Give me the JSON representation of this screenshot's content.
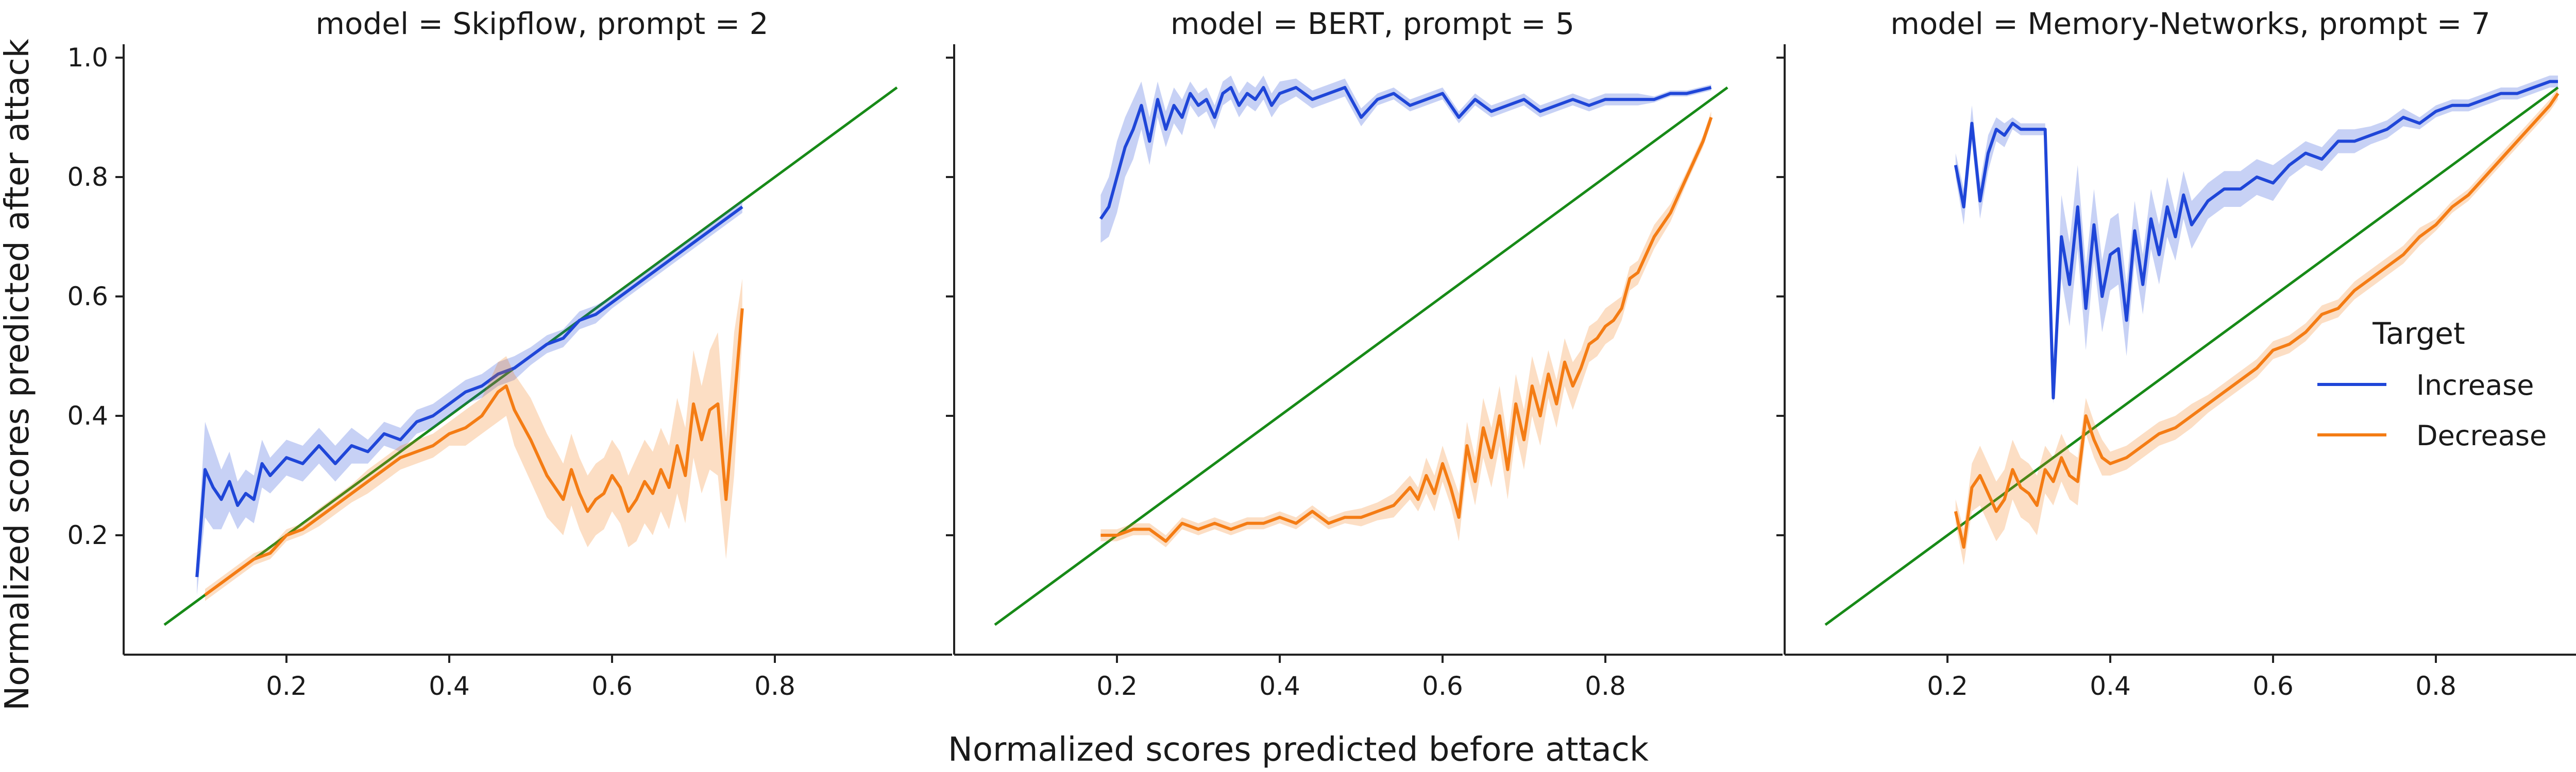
{
  "xlabel": "Normalized scores predicted before attack",
  "ylabel": "Normalized scores predicted after attack",
  "legend": {
    "title": "Target",
    "entries": [
      {
        "label": "Increase",
        "color": "#1f46d8"
      },
      {
        "label": "Decrease",
        "color": "#f47c14"
      }
    ]
  },
  "colors": {
    "increase": "#1f46d8",
    "decrease": "#f47c14",
    "diagonal": "#178a17",
    "axis": "#222222"
  },
  "chart_data": [
    {
      "type": "line",
      "title": "model = Skipflow, prompt = 2",
      "xlim": [
        0.0,
        1.0
      ],
      "ylim": [
        0.0,
        1.0
      ],
      "xticks": [
        "0.2",
        "0.4",
        "0.6",
        "0.8"
      ],
      "yticks": [
        "0.2",
        "0.4",
        "0.6",
        "0.8",
        "1.0"
      ],
      "diagonal": [
        [
          0.05,
          0.05
        ],
        [
          0.95,
          0.95
        ]
      ],
      "series": [
        {
          "name": "Increase",
          "x": [
            0.09,
            0.1,
            0.11,
            0.12,
            0.13,
            0.14,
            0.15,
            0.16,
            0.17,
            0.18,
            0.2,
            0.22,
            0.24,
            0.26,
            0.28,
            0.3,
            0.32,
            0.34,
            0.36,
            0.38,
            0.4,
            0.42,
            0.44,
            0.46,
            0.48,
            0.5,
            0.52,
            0.54,
            0.56,
            0.58,
            0.6,
            0.62,
            0.64,
            0.66,
            0.68,
            0.7,
            0.72,
            0.74,
            0.76
          ],
          "y": [
            0.13,
            0.31,
            0.28,
            0.26,
            0.29,
            0.25,
            0.27,
            0.26,
            0.32,
            0.3,
            0.33,
            0.32,
            0.35,
            0.32,
            0.35,
            0.34,
            0.37,
            0.36,
            0.39,
            0.4,
            0.42,
            0.44,
            0.45,
            0.47,
            0.48,
            0.5,
            0.52,
            0.53,
            0.56,
            0.57,
            0.59,
            0.61,
            0.63,
            0.65,
            0.67,
            0.69,
            0.71,
            0.73,
            0.75
          ],
          "band": [
            0.03,
            0.08,
            0.07,
            0.05,
            0.05,
            0.04,
            0.04,
            0.04,
            0.04,
            0.03,
            0.03,
            0.03,
            0.03,
            0.03,
            0.03,
            0.02,
            0.02,
            0.02,
            0.02,
            0.02,
            0.02,
            0.02,
            0.02,
            0.02,
            0.02,
            0.015,
            0.015,
            0.015,
            0.015,
            0.015,
            0.01,
            0.01,
            0.01,
            0.01,
            0.01,
            0.01,
            0.01,
            0.01,
            0.01
          ]
        },
        {
          "name": "Decrease",
          "x": [
            0.1,
            0.12,
            0.14,
            0.16,
            0.18,
            0.2,
            0.22,
            0.24,
            0.26,
            0.28,
            0.3,
            0.32,
            0.34,
            0.36,
            0.38,
            0.4,
            0.42,
            0.44,
            0.46,
            0.47,
            0.48,
            0.5,
            0.52,
            0.54,
            0.55,
            0.56,
            0.57,
            0.58,
            0.59,
            0.6,
            0.61,
            0.62,
            0.63,
            0.64,
            0.65,
            0.66,
            0.67,
            0.68,
            0.69,
            0.7,
            0.71,
            0.72,
            0.73,
            0.74,
            0.75,
            0.76
          ],
          "y": [
            0.1,
            0.12,
            0.14,
            0.16,
            0.17,
            0.2,
            0.21,
            0.23,
            0.25,
            0.27,
            0.29,
            0.31,
            0.33,
            0.34,
            0.35,
            0.37,
            0.38,
            0.4,
            0.44,
            0.45,
            0.41,
            0.36,
            0.3,
            0.26,
            0.31,
            0.27,
            0.24,
            0.26,
            0.27,
            0.3,
            0.28,
            0.24,
            0.26,
            0.29,
            0.27,
            0.31,
            0.28,
            0.35,
            0.3,
            0.42,
            0.36,
            0.41,
            0.42,
            0.26,
            0.42,
            0.58
          ],
          "band": [
            0.01,
            0.01,
            0.01,
            0.01,
            0.01,
            0.01,
            0.01,
            0.015,
            0.015,
            0.015,
            0.02,
            0.02,
            0.02,
            0.02,
            0.02,
            0.02,
            0.03,
            0.03,
            0.05,
            0.05,
            0.06,
            0.07,
            0.07,
            0.06,
            0.06,
            0.06,
            0.06,
            0.06,
            0.06,
            0.06,
            0.06,
            0.06,
            0.07,
            0.07,
            0.07,
            0.07,
            0.07,
            0.08,
            0.08,
            0.09,
            0.09,
            0.1,
            0.12,
            0.1,
            0.12,
            0.05
          ]
        }
      ]
    },
    {
      "type": "line",
      "title": "model = BERT, prompt = 5",
      "xlim": [
        0.0,
        1.0
      ],
      "ylim": [
        0.0,
        1.0
      ],
      "xticks": [
        "0.2",
        "0.4",
        "0.6",
        "0.8"
      ],
      "yticks": [
        "0.2",
        "0.4",
        "0.6",
        "0.8",
        "1.0"
      ],
      "diagonal": [
        [
          0.05,
          0.05
        ],
        [
          0.95,
          0.95
        ]
      ],
      "series": [
        {
          "name": "Increase",
          "x": [
            0.18,
            0.19,
            0.2,
            0.21,
            0.22,
            0.23,
            0.24,
            0.25,
            0.26,
            0.27,
            0.28,
            0.29,
            0.3,
            0.31,
            0.32,
            0.33,
            0.34,
            0.35,
            0.36,
            0.37,
            0.38,
            0.39,
            0.4,
            0.42,
            0.44,
            0.46,
            0.48,
            0.5,
            0.52,
            0.54,
            0.56,
            0.58,
            0.6,
            0.62,
            0.64,
            0.66,
            0.68,
            0.7,
            0.72,
            0.74,
            0.76,
            0.78,
            0.8,
            0.82,
            0.84,
            0.86,
            0.88,
            0.9,
            0.93
          ],
          "y": [
            0.73,
            0.75,
            0.8,
            0.85,
            0.88,
            0.92,
            0.86,
            0.93,
            0.88,
            0.92,
            0.9,
            0.94,
            0.92,
            0.93,
            0.9,
            0.94,
            0.95,
            0.92,
            0.94,
            0.93,
            0.95,
            0.92,
            0.94,
            0.95,
            0.93,
            0.94,
            0.95,
            0.9,
            0.93,
            0.94,
            0.92,
            0.93,
            0.94,
            0.9,
            0.93,
            0.91,
            0.92,
            0.93,
            0.91,
            0.92,
            0.93,
            0.92,
            0.93,
            0.93,
            0.93,
            0.93,
            0.94,
            0.94,
            0.95
          ],
          "band": [
            0.04,
            0.05,
            0.06,
            0.05,
            0.05,
            0.04,
            0.04,
            0.03,
            0.03,
            0.03,
            0.03,
            0.02,
            0.02,
            0.02,
            0.02,
            0.02,
            0.02,
            0.02,
            0.02,
            0.02,
            0.02,
            0.02,
            0.02,
            0.015,
            0.015,
            0.015,
            0.015,
            0.015,
            0.01,
            0.01,
            0.01,
            0.01,
            0.01,
            0.01,
            0.01,
            0.01,
            0.01,
            0.01,
            0.01,
            0.01,
            0.01,
            0.01,
            0.01,
            0.01,
            0.01,
            0.005,
            0.005,
            0.005,
            0.005
          ]
        },
        {
          "name": "Decrease",
          "x": [
            0.18,
            0.2,
            0.22,
            0.24,
            0.26,
            0.28,
            0.3,
            0.32,
            0.34,
            0.36,
            0.38,
            0.4,
            0.42,
            0.44,
            0.46,
            0.48,
            0.5,
            0.52,
            0.54,
            0.56,
            0.57,
            0.58,
            0.59,
            0.6,
            0.61,
            0.62,
            0.63,
            0.64,
            0.65,
            0.66,
            0.67,
            0.68,
            0.69,
            0.7,
            0.71,
            0.72,
            0.73,
            0.74,
            0.75,
            0.76,
            0.77,
            0.78,
            0.79,
            0.8,
            0.81,
            0.82,
            0.83,
            0.84,
            0.85,
            0.86,
            0.88,
            0.9,
            0.92,
            0.93
          ],
          "y": [
            0.2,
            0.2,
            0.21,
            0.21,
            0.19,
            0.22,
            0.21,
            0.22,
            0.21,
            0.22,
            0.22,
            0.23,
            0.22,
            0.24,
            0.22,
            0.23,
            0.23,
            0.24,
            0.25,
            0.28,
            0.26,
            0.3,
            0.27,
            0.32,
            0.28,
            0.23,
            0.35,
            0.29,
            0.38,
            0.33,
            0.4,
            0.31,
            0.42,
            0.36,
            0.45,
            0.4,
            0.47,
            0.42,
            0.49,
            0.45,
            0.48,
            0.52,
            0.53,
            0.55,
            0.56,
            0.58,
            0.63,
            0.64,
            0.67,
            0.7,
            0.74,
            0.8,
            0.86,
            0.9
          ],
          "band": [
            0.01,
            0.01,
            0.01,
            0.01,
            0.01,
            0.01,
            0.01,
            0.01,
            0.01,
            0.01,
            0.01,
            0.01,
            0.01,
            0.01,
            0.01,
            0.01,
            0.015,
            0.015,
            0.02,
            0.02,
            0.02,
            0.03,
            0.03,
            0.03,
            0.03,
            0.04,
            0.04,
            0.04,
            0.05,
            0.05,
            0.05,
            0.05,
            0.05,
            0.05,
            0.05,
            0.05,
            0.04,
            0.04,
            0.04,
            0.04,
            0.03,
            0.03,
            0.03,
            0.03,
            0.03,
            0.02,
            0.02,
            0.02,
            0.02,
            0.02,
            0.015,
            0.01,
            0.01,
            0.01
          ]
        }
      ]
    },
    {
      "type": "line",
      "title": "model = Memory-Networks, prompt = 7",
      "xlim": [
        0.0,
        1.0
      ],
      "ylim": [
        0.0,
        1.0
      ],
      "xticks": [
        "0.2",
        "0.4",
        "0.6",
        "0.8"
      ],
      "yticks": [
        "0.2",
        "0.4",
        "0.6",
        "0.8",
        "1.0"
      ],
      "diagonal": [
        [
          0.05,
          0.05
        ],
        [
          0.95,
          0.95
        ]
      ],
      "series": [
        {
          "name": "Increase",
          "x": [
            0.21,
            0.22,
            0.23,
            0.24,
            0.25,
            0.26,
            0.27,
            0.28,
            0.29,
            0.3,
            0.31,
            0.32,
            0.33,
            0.34,
            0.35,
            0.36,
            0.37,
            0.38,
            0.39,
            0.4,
            0.41,
            0.42,
            0.43,
            0.44,
            0.45,
            0.46,
            0.47,
            0.48,
            0.49,
            0.5,
            0.52,
            0.54,
            0.56,
            0.58,
            0.6,
            0.62,
            0.64,
            0.66,
            0.68,
            0.7,
            0.72,
            0.74,
            0.76,
            0.78,
            0.8,
            0.82,
            0.84,
            0.86,
            0.88,
            0.9,
            0.92,
            0.94,
            0.95
          ],
          "y": [
            0.82,
            0.75,
            0.89,
            0.76,
            0.84,
            0.88,
            0.87,
            0.89,
            0.88,
            0.88,
            0.88,
            0.88,
            0.43,
            0.7,
            0.62,
            0.75,
            0.58,
            0.72,
            0.6,
            0.67,
            0.68,
            0.56,
            0.71,
            0.62,
            0.73,
            0.67,
            0.75,
            0.7,
            0.77,
            0.72,
            0.76,
            0.78,
            0.78,
            0.8,
            0.79,
            0.82,
            0.84,
            0.83,
            0.86,
            0.86,
            0.87,
            0.88,
            0.9,
            0.89,
            0.91,
            0.92,
            0.92,
            0.93,
            0.94,
            0.94,
            0.95,
            0.96,
            0.96
          ],
          "band": [
            0.02,
            0.03,
            0.03,
            0.03,
            0.03,
            0.02,
            0.02,
            0.01,
            0.01,
            0.01,
            0.01,
            0.01,
            0.01,
            0.07,
            0.07,
            0.07,
            0.07,
            0.06,
            0.06,
            0.06,
            0.06,
            0.06,
            0.05,
            0.05,
            0.05,
            0.05,
            0.05,
            0.04,
            0.04,
            0.04,
            0.03,
            0.03,
            0.03,
            0.03,
            0.03,
            0.02,
            0.02,
            0.02,
            0.02,
            0.02,
            0.015,
            0.015,
            0.015,
            0.01,
            0.01,
            0.01,
            0.01,
            0.01,
            0.01,
            0.01,
            0.01,
            0.01,
            0.01
          ]
        },
        {
          "name": "Decrease",
          "x": [
            0.21,
            0.22,
            0.23,
            0.24,
            0.25,
            0.26,
            0.27,
            0.28,
            0.29,
            0.3,
            0.31,
            0.32,
            0.33,
            0.34,
            0.35,
            0.36,
            0.37,
            0.38,
            0.39,
            0.4,
            0.42,
            0.44,
            0.46,
            0.48,
            0.5,
            0.52,
            0.54,
            0.56,
            0.58,
            0.6,
            0.62,
            0.64,
            0.66,
            0.68,
            0.7,
            0.72,
            0.74,
            0.76,
            0.78,
            0.8,
            0.82,
            0.84,
            0.86,
            0.88,
            0.9,
            0.92,
            0.94,
            0.95
          ],
          "y": [
            0.24,
            0.18,
            0.28,
            0.3,
            0.27,
            0.24,
            0.26,
            0.31,
            0.28,
            0.27,
            0.25,
            0.31,
            0.29,
            0.33,
            0.3,
            0.29,
            0.4,
            0.36,
            0.33,
            0.32,
            0.33,
            0.35,
            0.37,
            0.38,
            0.4,
            0.42,
            0.44,
            0.46,
            0.48,
            0.51,
            0.52,
            0.54,
            0.57,
            0.58,
            0.61,
            0.63,
            0.65,
            0.67,
            0.7,
            0.72,
            0.75,
            0.77,
            0.8,
            0.83,
            0.86,
            0.89,
            0.92,
            0.94
          ],
          "band": [
            0.02,
            0.03,
            0.04,
            0.05,
            0.05,
            0.05,
            0.05,
            0.05,
            0.05,
            0.05,
            0.05,
            0.04,
            0.04,
            0.04,
            0.04,
            0.04,
            0.03,
            0.03,
            0.03,
            0.02,
            0.02,
            0.02,
            0.02,
            0.02,
            0.02,
            0.015,
            0.015,
            0.015,
            0.015,
            0.015,
            0.015,
            0.015,
            0.015,
            0.015,
            0.015,
            0.015,
            0.015,
            0.015,
            0.015,
            0.01,
            0.01,
            0.01,
            0.01,
            0.01,
            0.01,
            0.01,
            0.01,
            0.01
          ]
        }
      ]
    }
  ]
}
